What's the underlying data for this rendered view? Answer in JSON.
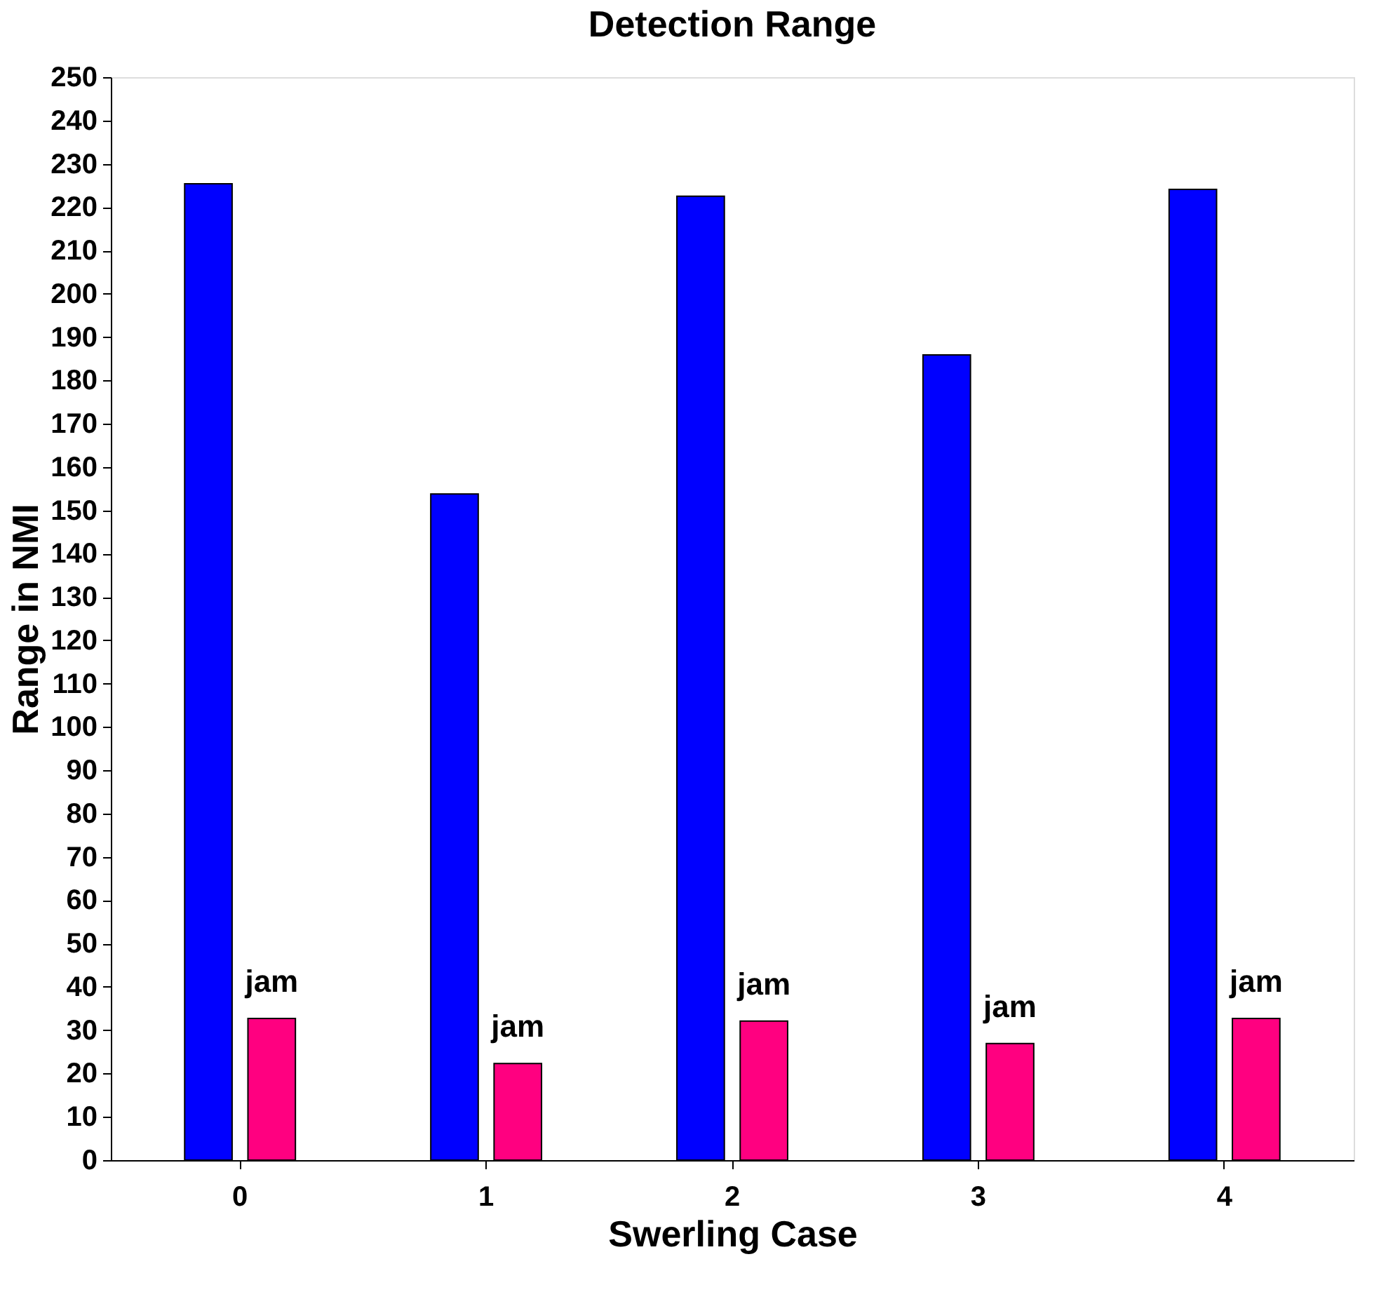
{
  "chart_data": {
    "type": "bar",
    "title": "Detection Range",
    "xlabel": "Swerling Case",
    "ylabel": "Range in NMI",
    "categories": [
      "0",
      "1",
      "2",
      "3",
      "4"
    ],
    "series": [
      {
        "color": "#0000ff",
        "values": [
          225.4,
          153.8,
          222.5,
          185.9,
          224.1
        ]
      },
      {
        "name": "jam",
        "color": "#ff0080",
        "values": [
          32.7,
          22.3,
          32.1,
          26.9,
          32.7
        ]
      }
    ],
    "ylim": [
      0,
      250
    ],
    "yticks": [
      0,
      10,
      20,
      30,
      40,
      50,
      60,
      70,
      80,
      90,
      100,
      110,
      120,
      130,
      140,
      150,
      160,
      170,
      180,
      190,
      200,
      210,
      220,
      230,
      240,
      250
    ],
    "grid": false,
    "legend": false
  }
}
